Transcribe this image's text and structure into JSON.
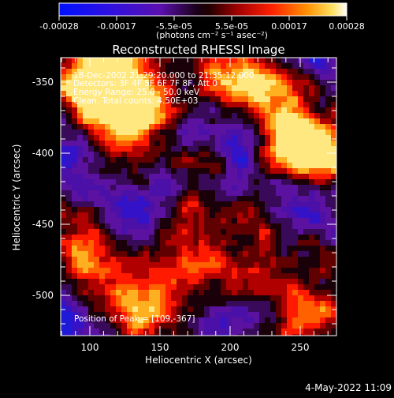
{
  "colorbar": {
    "tick_labels": [
      "-0.00028",
      "-0.00017",
      "-5.5e-05",
      "5.5e-05",
      "0.00017",
      "0.00028"
    ],
    "units_label": "(photons cm⁻² s⁻¹ asec⁻²)"
  },
  "plot": {
    "title": "Reconstructed RHESSI Image",
    "x_label": "Heliocentric X (arcsec)",
    "y_label": "Heliocentric Y (arcsec)",
    "x_ticks": [
      "100",
      "150",
      "200",
      "250"
    ],
    "y_ticks": [
      "-350",
      "-400",
      "-450",
      "-500"
    ],
    "info_lines": [
      "18-Dec-2002 21:29:20.000 to 21:35:12.000",
      "Detectors: 3F 4F 5F 6F 7F 8F, Att 0",
      "Energy Range: 25.0 - 50.0 keV",
      "Clean.  Total counts: 4.50E+03"
    ],
    "peak_label": "Position of Peak = [109,-367]"
  },
  "footer": {
    "date_stamp": "4-May-2022 11:09"
  }
}
